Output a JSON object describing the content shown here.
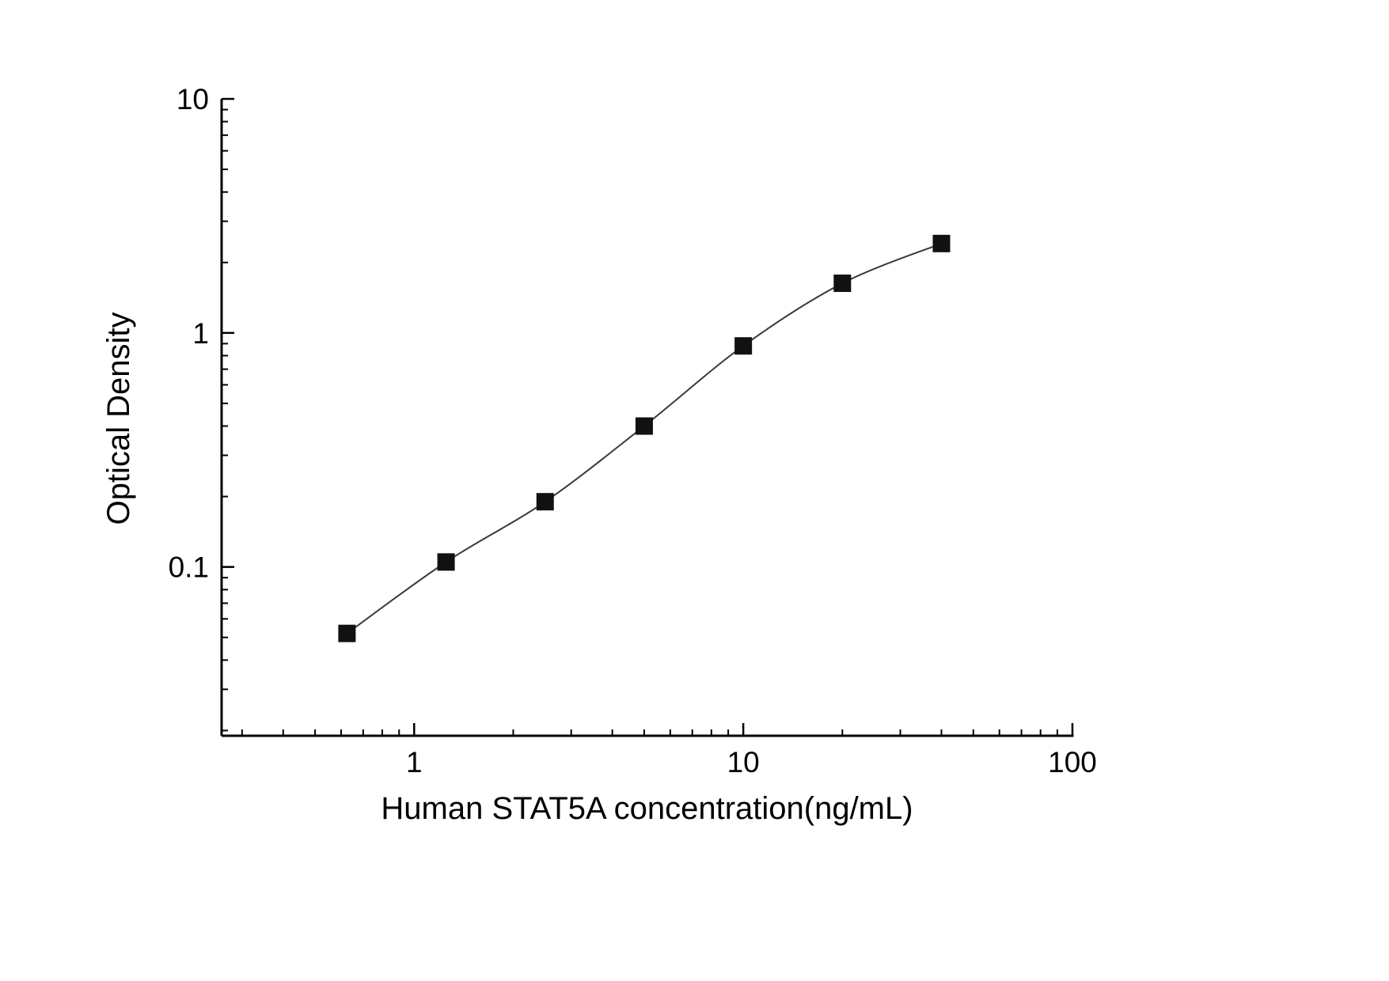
{
  "chart_data": {
    "type": "scatter",
    "title": "",
    "xlabel": "Human STAT5A concentration(ng/mL)",
    "ylabel": "Optical Density",
    "xscale": "log",
    "yscale": "log",
    "xlim": [
      0.26,
      100
    ],
    "ylim": [
      0.019,
      10
    ],
    "x": [
      0.625,
      1.25,
      2.5,
      5,
      10,
      20,
      40
    ],
    "y": [
      0.052,
      0.105,
      0.19,
      0.4,
      0.88,
      1.63,
      2.41
    ],
    "xticks": [
      {
        "v": 1,
        "label": "1"
      },
      {
        "v": 10,
        "label": "10"
      },
      {
        "v": 100,
        "label": "100"
      }
    ],
    "yticks": [
      {
        "v": 0.1,
        "label": "0.1"
      },
      {
        "v": 1,
        "label": "1"
      },
      {
        "v": 10,
        "label": "10"
      }
    ],
    "grid": false,
    "legend": null,
    "marker": "square",
    "marker_color": "#111111",
    "line_color": "#3a3a3a",
    "axis_color": "#000000",
    "tick_label_color": "#000000"
  }
}
